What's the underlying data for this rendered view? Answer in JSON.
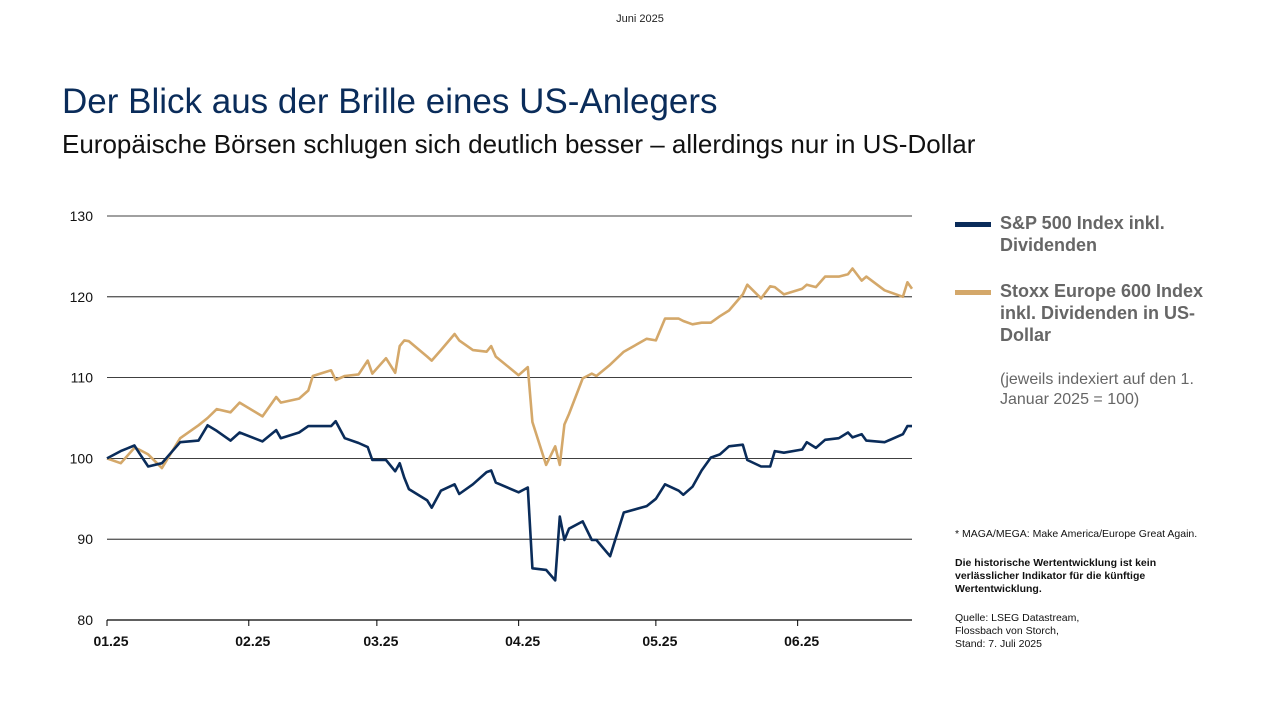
{
  "chart_data": {
    "type": "line",
    "date_label": "Juni 2025",
    "title": "Der Blick aus der Brille eines US-Anlegers",
    "subtitle": "Europäische Börsen schlugen sich deutlich besser – allerdings nur in US-Dollar",
    "note": "(jeweils indexiert auf den 1. Januar 2025 = 100)",
    "footnotes": [
      "* MAGA/MEGA: Make America/Europe Great Again.",
      "Die historische Wertentwicklung ist kein verlässlicher Indikator für die künftige Wertentwicklung.",
      "Quelle: LSEG Datastream, Flossbach von Storch, Stand: 7. Juli 2025"
    ],
    "x": [
      0,
      3,
      6,
      7,
      9,
      12,
      16,
      20,
      22,
      24,
      27,
      29,
      34,
      37,
      38,
      42,
      44,
      45,
      49,
      50,
      52,
      55,
      57,
      58,
      61,
      63,
      64,
      65,
      66,
      70,
      71,
      73,
      76,
      77,
      80,
      83,
      84,
      85,
      90,
      92,
      93,
      96,
      98,
      99,
      100,
      101,
      104,
      106,
      107,
      110,
      113,
      118,
      120,
      122,
      125,
      126,
      128,
      130,
      132,
      134,
      136,
      139,
      140,
      143,
      145,
      146,
      148,
      152,
      153,
      155,
      157,
      160,
      162,
      163,
      165,
      166,
      170,
      174,
      175,
      176
    ],
    "xlim": [
      0,
      176
    ],
    "xticks": [
      {
        "value": 0,
        "label": "01.25"
      },
      {
        "value": 31,
        "label": "02.25"
      },
      {
        "value": 59,
        "label": "03.25"
      },
      {
        "value": 90,
        "label": "04.25"
      },
      {
        "value": 120,
        "label": "05.25"
      },
      {
        "value": 151,
        "label": "06.25"
      }
    ],
    "ylim": [
      80,
      130
    ],
    "yticks": [
      80,
      90,
      100,
      110,
      120,
      130
    ],
    "grid": true,
    "series": [
      {
        "name": "S&P 500 Index inkl. Dividenden",
        "color": "#0a2c5a",
        "values": [
          100,
          100.9,
          101.6,
          100.7,
          99,
          99.4,
          102,
          102.2,
          104.1,
          103.4,
          102.2,
          103.2,
          102.1,
          103.5,
          102.5,
          103.2,
          104,
          104,
          104,
          104.6,
          102.5,
          101.9,
          101.4,
          99.8,
          99.8,
          98.4,
          99.4,
          97.6,
          96.2,
          94.8,
          93.9,
          96,
          96.8,
          95.6,
          96.8,
          98.3,
          98.5,
          97,
          95.8,
          96.4,
          86.4,
          86.2,
          84.9,
          92.8,
          89.9,
          91.3,
          92.2,
          89.9,
          89.9,
          87.9,
          93.3,
          94.1,
          95,
          96.8,
          96,
          95.5,
          96.5,
          98.5,
          100.1,
          100.5,
          101.5,
          101.7,
          99.8,
          99,
          99,
          100.9,
          100.7,
          101.1,
          102,
          101.3,
          102.3,
          102.5,
          103.2,
          102.6,
          103,
          102.2,
          102,
          103,
          104,
          104
        ]
      },
      {
        "name": "Stoxx Europe 600 Index inkl. Dividenden in US-Dollar",
        "color": "#d4a86a",
        "values": [
          100,
          99.4,
          101.3,
          101.1,
          100.5,
          98.8,
          102.5,
          104.1,
          105,
          106.1,
          105.7,
          106.9,
          105.2,
          107.6,
          106.9,
          107.4,
          108.4,
          110.2,
          110.9,
          109.7,
          110.2,
          110.4,
          112.1,
          110.5,
          112.4,
          110.6,
          113.9,
          114.6,
          114.5,
          112.6,
          112.1,
          113.4,
          115.4,
          114.6,
          113.4,
          113.2,
          113.9,
          112.6,
          110.3,
          111.3,
          104.5,
          99.2,
          101.5,
          99.2,
          104.2,
          105.5,
          109.9,
          110.5,
          110.2,
          111.6,
          113.2,
          114.8,
          114.6,
          117.3,
          117.3,
          117,
          116.6,
          116.8,
          116.8,
          117.6,
          118.3,
          120.3,
          121.5,
          119.8,
          121.3,
          121.2,
          120.3,
          121,
          121.5,
          121.2,
          122.5,
          122.5,
          122.8,
          123.5,
          122,
          122.5,
          120.8,
          120,
          121.8,
          121
        ]
      }
    ]
  }
}
